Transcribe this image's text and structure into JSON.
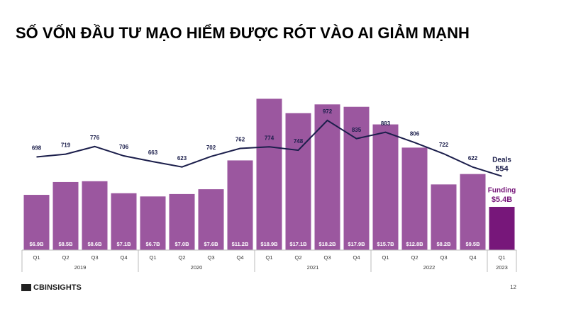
{
  "chart_data": {
    "type": "bar_line",
    "title": "SỐ VỐN ĐẦU TƯ MẠO HIỂM ĐƯỢC RÓT VÀO AI GIẢM MẠNH",
    "categories": [
      "Q1",
      "Q2",
      "Q3",
      "Q4",
      "Q1",
      "Q2",
      "Q3",
      "Q4",
      "Q1",
      "Q2",
      "Q3",
      "Q4",
      "Q1",
      "Q2",
      "Q3",
      "Q4",
      "Q1"
    ],
    "years": [
      "2019",
      "2019",
      "2019",
      "2019",
      "2020",
      "2020",
      "2020",
      "2020",
      "2021",
      "2021",
      "2021",
      "2021",
      "2022",
      "2022",
      "2022",
      "2022",
      "2023"
    ],
    "series": [
      {
        "name": "Funding",
        "type": "bar",
        "color": "#9b579f",
        "colors": [
          "#9b579f",
          "#9b579f",
          "#9b579f",
          "#9b579f",
          "#9b579f",
          "#9b579f",
          "#9b579f",
          "#9b579f",
          "#9b579f",
          "#9b579f",
          "#9b579f",
          "#9b579f",
          "#9b579f",
          "#9b579f",
          "#9b579f",
          "#9b579f",
          "#77177a"
        ],
        "values": [
          6.9,
          8.5,
          8.6,
          7.1,
          6.7,
          7.0,
          7.6,
          11.2,
          18.9,
          17.1,
          18.2,
          17.9,
          15.7,
          12.8,
          8.2,
          9.5,
          5.4
        ],
        "value_labels": [
          "$6.9B",
          "$8.5B",
          "$8.6B",
          "$7.1B",
          "$6.7B",
          "$7.0B",
          "$7.6B",
          "$11.2B",
          "$18.9B",
          "$17.1B",
          "$18.2B",
          "$17.9B",
          "$15.7B",
          "$12.8B",
          "$8.2B",
          "$9.5B",
          "$5.4B"
        ]
      },
      {
        "name": "Deals",
        "type": "line",
        "axis": "y2",
        "color": "#1b1e4b",
        "values": [
          698,
          719,
          776,
          706,
          663,
          623,
          702,
          762,
          774,
          748,
          972,
          835,
          883,
          806,
          722,
          622,
          554
        ]
      }
    ],
    "ylim": [
      0,
      20
    ],
    "y2lim": [
      0,
      1200
    ],
    "source": "CBINSIGHTS",
    "page_number": "12"
  }
}
